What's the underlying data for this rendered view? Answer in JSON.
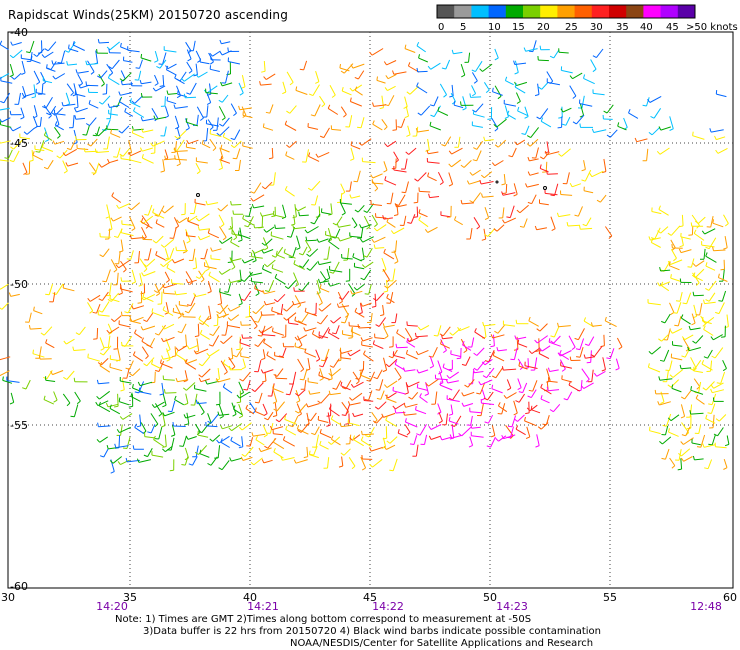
{
  "title": "Rapidscat Winds(25KM) 20150720 ascending",
  "legend": {
    "labels": [
      "0",
      "5",
      "10",
      "15",
      "20",
      "25",
      "30",
      "35",
      "40",
      "45",
      ">50 knots"
    ],
    "colors": [
      "#555555",
      "#9a9a9a",
      "#00bfff",
      "#0066ff",
      "#00aa00",
      "#7ad000",
      "#ffee00",
      "#ffa000",
      "#ff6000",
      "#ff2020",
      "#d00000",
      "#8b4513",
      "#ff00ff",
      "#b000ff",
      "#5a00a8"
    ]
  },
  "axes": {
    "x_ticks": [
      "30",
      "35",
      "40",
      "45",
      "50",
      "55",
      "60"
    ],
    "y_ticks": [
      "-40",
      "-45",
      "-50",
      "-55",
      "-60"
    ],
    "times": [
      "14:20",
      "14:21",
      "14:22",
      "14:23",
      "12:48"
    ]
  },
  "notes": {
    "line1": "Note: 1) Times are GMT 2)Times along bottom correspond to measurement at -50S",
    "line2": "3)Data buffer is 22 hrs from 20150720 4) Black wind barbs indicate possible contamination",
    "line3": "NOAA/NESDIS/Center for Satellite Applications and Research"
  }
}
